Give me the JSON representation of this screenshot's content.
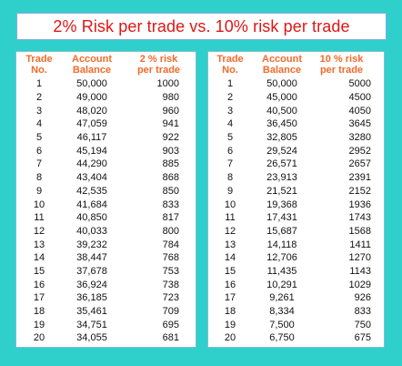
{
  "title": "2% Risk per trade vs. 10% risk per trade",
  "colors": {
    "background": "#2fd0cc",
    "title_text": "#e01616",
    "header_text": "#f26b2a"
  },
  "left_table": {
    "headers": [
      "Trade\nNo.",
      "Account\nBalance",
      "2 % risk\nper trade"
    ],
    "rows": [
      [
        "1",
        "50,000",
        "1000"
      ],
      [
        "2",
        "49,000",
        "980"
      ],
      [
        "3",
        "48,020",
        "960"
      ],
      [
        "4",
        "47,059",
        "941"
      ],
      [
        "5",
        "46,117",
        "922"
      ],
      [
        "6",
        "45,194",
        "903"
      ],
      [
        "7",
        "44,290",
        "885"
      ],
      [
        "8",
        "43,404",
        "868"
      ],
      [
        "9",
        "42,535",
        "850"
      ],
      [
        "10",
        "41,684",
        "833"
      ],
      [
        "11",
        "40,850",
        "817"
      ],
      [
        "12",
        "40,033",
        "800"
      ],
      [
        "13",
        "39,232",
        "784"
      ],
      [
        "14",
        "38,447",
        "768"
      ],
      [
        "15",
        "37,678",
        "753"
      ],
      [
        "16",
        "36,924",
        "738"
      ],
      [
        "17",
        "36,185",
        "723"
      ],
      [
        "18",
        "35,461",
        "709"
      ],
      [
        "19",
        "34,751",
        "695"
      ],
      [
        "20",
        "34,055",
        "681"
      ]
    ]
  },
  "right_table": {
    "headers": [
      "Trade\nNo.",
      "Account\nBalance",
      "10 % risk\nper trade"
    ],
    "rows": [
      [
        "1",
        "50,000",
        "5000"
      ],
      [
        "2",
        "45,000",
        "4500"
      ],
      [
        "3",
        "40,500",
        "4050"
      ],
      [
        "4",
        "36,450",
        "3645"
      ],
      [
        "5",
        "32,805",
        "3280"
      ],
      [
        "6",
        "29,524",
        "2952"
      ],
      [
        "7",
        "26,571",
        "2657"
      ],
      [
        "8",
        "23,913",
        "2391"
      ],
      [
        "9",
        "21,521",
        "2152"
      ],
      [
        "10",
        "19,368",
        "1936"
      ],
      [
        "11",
        "17,431",
        "1743"
      ],
      [
        "12",
        "15,687",
        "1568"
      ],
      [
        "13",
        "14,118",
        "1411"
      ],
      [
        "14",
        "12,706",
        "1270"
      ],
      [
        "15",
        "11,435",
        "1143"
      ],
      [
        "16",
        "10,291",
        "1029"
      ],
      [
        "17",
        "9,261",
        "926"
      ],
      [
        "18",
        "8,334",
        "833"
      ],
      [
        "19",
        "7,500",
        "750"
      ],
      [
        "20",
        "6,750",
        "675"
      ]
    ]
  }
}
